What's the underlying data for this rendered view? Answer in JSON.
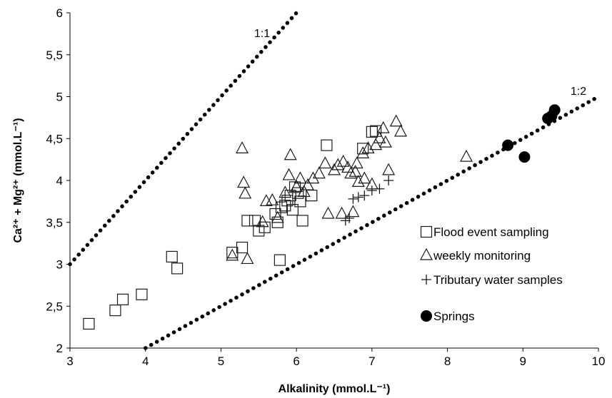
{
  "chart_data": {
    "type": "scatter",
    "title": "",
    "xlabel": "Alkalinity (mmol.L⁻¹)",
    "ylabel": "Ca²⁺ + Mg²⁺ (mmol.L⁻¹)",
    "xlim": [
      3,
      10
    ],
    "ylim": [
      2,
      6
    ],
    "xticks": [
      "3",
      "4",
      "5",
      "6",
      "7",
      "8",
      "9",
      "10"
    ],
    "yticks": [
      "2",
      "2,5",
      "3",
      "3,5",
      "4",
      "4,5",
      "5",
      "5,5",
      "6"
    ],
    "grid": false,
    "legend_position": "bottom-right",
    "reference_lines": [
      {
        "label": "1:1",
        "slope": 1,
        "x": [
          3,
          6
        ]
      },
      {
        "label": "1:2",
        "slope": 0.5,
        "x": [
          4,
          10
        ]
      }
    ],
    "series": [
      {
        "name": "Flood event sampling",
        "marker": "square",
        "points": [
          [
            3.25,
            2.29
          ],
          [
            3.6,
            2.45
          ],
          [
            3.7,
            2.58
          ],
          [
            3.95,
            2.64
          ],
          [
            4.35,
            3.09
          ],
          [
            4.42,
            2.95
          ],
          [
            5.15,
            3.14
          ],
          [
            5.28,
            3.2
          ],
          [
            5.35,
            3.52
          ],
          [
            5.45,
            3.52
          ],
          [
            5.5,
            3.4
          ],
          [
            5.58,
            3.44
          ],
          [
            5.72,
            3.6
          ],
          [
            5.75,
            3.5
          ],
          [
            5.78,
            3.05
          ],
          [
            5.8,
            3.68
          ],
          [
            5.85,
            3.7
          ],
          [
            5.88,
            3.76
          ],
          [
            5.92,
            3.82
          ],
          [
            5.95,
            3.65
          ],
          [
            5.98,
            3.92
          ],
          [
            6.02,
            3.85
          ],
          [
            6.05,
            3.75
          ],
          [
            6.08,
            3.52
          ],
          [
            6.2,
            3.82
          ],
          [
            6.4,
            4.42
          ],
          [
            6.88,
            4.38
          ],
          [
            7.0,
            4.58
          ],
          [
            7.05,
            4.59
          ]
        ]
      },
      {
        "name": "weekly monitoring",
        "marker": "triangle",
        "points": [
          [
            5.15,
            3.1
          ],
          [
            5.28,
            4.38
          ],
          [
            5.3,
            3.97
          ],
          [
            5.32,
            3.84
          ],
          [
            5.35,
            3.06
          ],
          [
            5.55,
            3.5
          ],
          [
            5.6,
            3.75
          ],
          [
            5.68,
            3.76
          ],
          [
            5.75,
            3.55
          ],
          [
            5.85,
            3.85
          ],
          [
            5.9,
            4.06
          ],
          [
            5.92,
            4.3
          ],
          [
            6.0,
            3.92
          ],
          [
            6.05,
            4.02
          ],
          [
            6.1,
            3.86
          ],
          [
            6.15,
            3.94
          ],
          [
            6.22,
            4.02
          ],
          [
            6.3,
            4.08
          ],
          [
            6.38,
            4.2
          ],
          [
            6.42,
            3.6
          ],
          [
            6.5,
            4.12
          ],
          [
            6.55,
            4.18
          ],
          [
            6.6,
            3.6
          ],
          [
            6.62,
            4.22
          ],
          [
            6.68,
            4.15
          ],
          [
            6.72,
            4.08
          ],
          [
            6.75,
            3.62
          ],
          [
            6.78,
            4.1
          ],
          [
            6.8,
            4.2
          ],
          [
            6.82,
            3.98
          ],
          [
            6.88,
            4.32
          ],
          [
            6.9,
            4.02
          ],
          [
            6.95,
            4.38
          ],
          [
            7.0,
            3.95
          ],
          [
            7.05,
            4.42
          ],
          [
            7.1,
            4.5
          ],
          [
            7.15,
            4.62
          ],
          [
            7.18,
            4.45
          ],
          [
            7.22,
            4.12
          ],
          [
            7.32,
            4.7
          ],
          [
            7.38,
            4.58
          ],
          [
            8.25,
            4.28
          ]
        ]
      },
      {
        "name": "Tributary water samples",
        "marker": "plus",
        "points": [
          [
            6.65,
            3.52
          ],
          [
            6.7,
            3.55
          ],
          [
            6.75,
            3.78
          ],
          [
            6.82,
            3.8
          ],
          [
            6.9,
            3.82
          ],
          [
            7.0,
            3.88
          ],
          [
            7.1,
            3.9
          ],
          [
            7.22,
            4.0
          ]
        ]
      },
      {
        "name": "Springs",
        "marker": "circle",
        "points": [
          [
            8.8,
            4.42
          ],
          [
            9.02,
            4.28
          ],
          [
            9.33,
            4.74
          ],
          [
            9.38,
            4.77
          ],
          [
            9.42,
            4.84
          ]
        ]
      }
    ]
  }
}
